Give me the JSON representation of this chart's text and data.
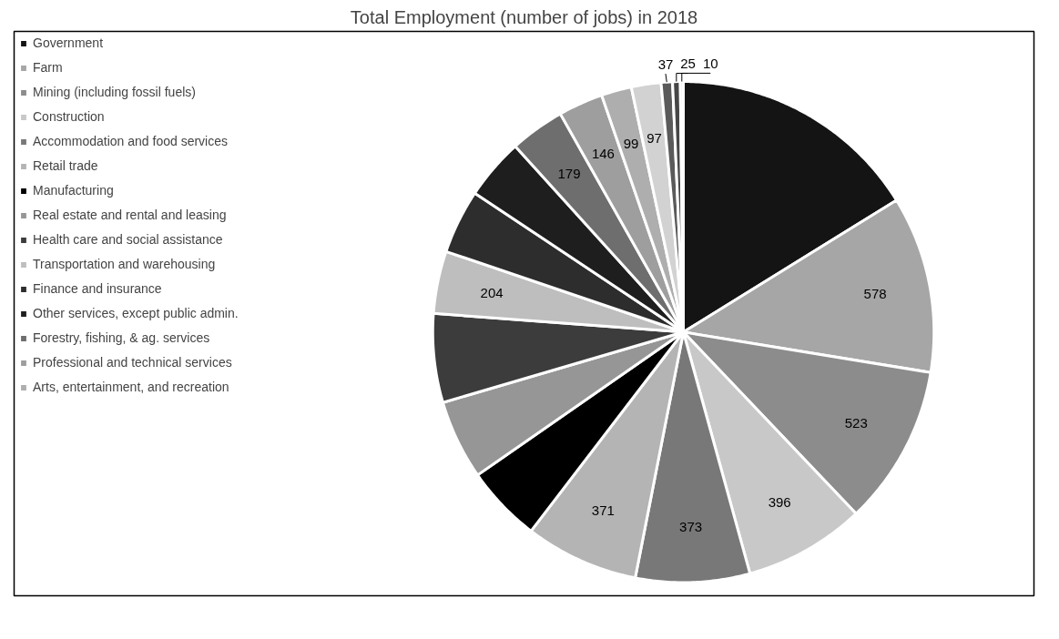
{
  "chart_data": {
    "type": "pie",
    "title": "Total Employment (number of jobs) in 2018",
    "categories": [
      "Government",
      "Farm",
      "Mining (including fossil fuels)",
      "Construction",
      "Accommodation and food services",
      "Retail trade",
      "Manufacturing",
      "Real estate and rental and leasing",
      "Health care and social assistance",
      "Transportation and warehousing",
      "Finance and insurance",
      "Other services, except public admin.",
      "Forestry, fishing, & ag. services",
      "Professional and technical services",
      "Arts, entertainment, and recreation",
      null,
      null,
      null,
      null
    ],
    "values": [
      820,
      578,
      523,
      396,
      373,
      371,
      250,
      260,
      290,
      204,
      210,
      200,
      179,
      146,
      99,
      97,
      37,
      25,
      10
    ],
    "value_labels": [
      null,
      "578",
      "523",
      "396",
      "373",
      "371",
      null,
      null,
      null,
      "204",
      null,
      null,
      "179",
      "146",
      "99",
      "97",
      "37",
      "25",
      "10"
    ],
    "colors": [
      "#141414",
      "#a6a6a6",
      "#8c8c8c",
      "#c8c8c8",
      "#787878",
      "#b4b4b4",
      "#000000",
      "#969696",
      "#3c3c3c",
      "#bebebe",
      "#2d2d2d",
      "#1e1e1e",
      "#6e6e6e",
      "#9e9e9e",
      "#aeaeae",
      "#d2d2d2",
      "#5a5a5a",
      "#464646",
      "#dcdcdc"
    ],
    "legend": "left"
  }
}
